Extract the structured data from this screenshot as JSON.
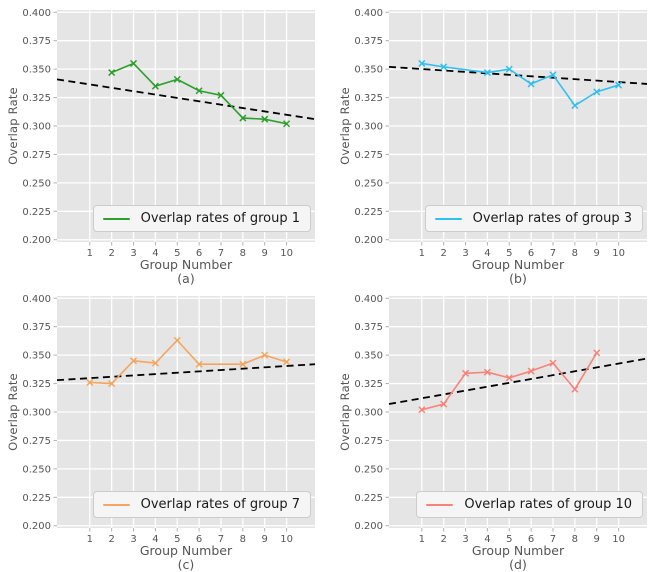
{
  "figure": {
    "background": "#ffffff",
    "plot_background": "#e5e5e5",
    "grid_color": "#ffffff",
    "tick_mark_color": "#b0b0b0",
    "tick_label_color": "#555555",
    "axis_label_color": "#555555",
    "trend_line_color": "#000000",
    "legend_background": "#f5f5f5",
    "legend_border": "#cccccc"
  },
  "chart_data": [
    {
      "type": "line",
      "caption": "(a)",
      "xlabel": "Group Number",
      "ylabel": "Overlap Rate",
      "legend_label": "Overlap rates of group 1",
      "legend_position": "lower right",
      "color": "#2ca02c",
      "marker": "x",
      "x": [
        2,
        3,
        4,
        5,
        6,
        7,
        8,
        9,
        10
      ],
      "y": [
        0.347,
        0.355,
        0.335,
        0.341,
        0.331,
        0.327,
        0.307,
        0.306,
        0.302
      ],
      "trend": {
        "style": "dashed",
        "color": "#000000",
        "y_left": 0.341,
        "y_right": 0.306
      },
      "xlim": [
        -0.5,
        11.3
      ],
      "ylim": [
        0.198,
        0.402
      ],
      "xticks": [
        1,
        2,
        3,
        4,
        5,
        6,
        7,
        8,
        9,
        10
      ],
      "yticks": [
        0.2,
        0.225,
        0.25,
        0.275,
        0.3,
        0.325,
        0.35,
        0.375,
        0.4
      ],
      "grid": true
    },
    {
      "type": "line",
      "caption": "(b)",
      "xlabel": "Group Number",
      "ylabel": "Overlap Rate",
      "legend_label": "Overlap rates of group 3",
      "legend_position": "lower right",
      "color": "#2fc0f2",
      "marker": "x",
      "x": [
        1,
        2,
        4,
        5,
        6,
        7,
        8,
        9,
        10
      ],
      "y": [
        0.355,
        0.352,
        0.347,
        0.35,
        0.337,
        0.345,
        0.318,
        0.33,
        0.336
      ],
      "trend": {
        "style": "dashed",
        "color": "#000000",
        "y_left": 0.352,
        "y_right": 0.337
      },
      "xlim": [
        -0.5,
        11.3
      ],
      "ylim": [
        0.198,
        0.402
      ],
      "xticks": [
        1,
        2,
        3,
        4,
        5,
        6,
        7,
        8,
        9,
        10
      ],
      "yticks": [
        0.2,
        0.225,
        0.25,
        0.275,
        0.3,
        0.325,
        0.35,
        0.375,
        0.4
      ],
      "grid": true
    },
    {
      "type": "line",
      "caption": "(c)",
      "xlabel": "Group Number",
      "ylabel": "Overlap Rate",
      "legend_label": "Overlap rates of group 7",
      "legend_position": "lower right",
      "color": "#f5a55f",
      "marker": "x",
      "x": [
        1,
        2,
        3,
        4,
        5,
        6,
        8,
        9,
        10
      ],
      "y": [
        0.326,
        0.325,
        0.345,
        0.343,
        0.363,
        0.342,
        0.342,
        0.35,
        0.344
      ],
      "trend": {
        "style": "dashed",
        "color": "#000000",
        "y_left": 0.328,
        "y_right": 0.342
      },
      "xlim": [
        -0.5,
        11.3
      ],
      "ylim": [
        0.198,
        0.402
      ],
      "xticks": [
        1,
        2,
        3,
        4,
        5,
        6,
        7,
        8,
        9,
        10
      ],
      "yticks": [
        0.2,
        0.225,
        0.25,
        0.275,
        0.3,
        0.325,
        0.35,
        0.375,
        0.4
      ],
      "grid": true
    },
    {
      "type": "line",
      "caption": "(d)",
      "xlabel": "Group Number",
      "ylabel": "Overlap Rate",
      "legend_label": "Overlap rates of group 10",
      "legend_position": "lower right",
      "color": "#f88379",
      "marker": "x",
      "x": [
        1,
        2,
        3,
        4,
        5,
        6,
        7,
        8,
        9
      ],
      "y": [
        0.302,
        0.307,
        0.334,
        0.335,
        0.33,
        0.336,
        0.343,
        0.32,
        0.352
      ],
      "trend": {
        "style": "dashed",
        "color": "#000000",
        "y_left": 0.307,
        "y_right": 0.347
      },
      "xlim": [
        -0.5,
        11.3
      ],
      "ylim": [
        0.198,
        0.402
      ],
      "xticks": [
        1,
        2,
        3,
        4,
        5,
        6,
        7,
        8,
        9,
        10
      ],
      "yticks": [
        0.2,
        0.225,
        0.25,
        0.275,
        0.3,
        0.325,
        0.35,
        0.375,
        0.4
      ],
      "grid": true
    }
  ]
}
